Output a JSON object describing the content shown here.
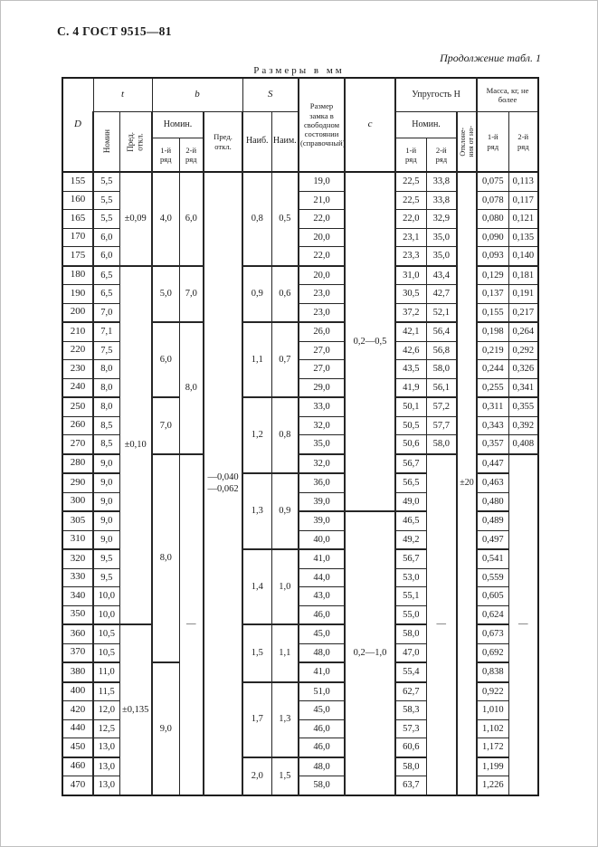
{
  "page": {
    "header_left": "С. 4 ГОСТ 9515—81",
    "continuation": "Продолжение табл. 1",
    "units_caption": "Размеры в мм"
  },
  "table": {
    "h": {
      "d": "D",
      "t": "t",
      "b": "b",
      "s": "S",
      "c": "с",
      "lock": "Размер замка в свободном состоянии (справочный)",
      "elasticity": "Упругость Н",
      "mass": "Масса, кг, не более",
      "nomin": "Номин.",
      "t_nomin": "Номин",
      "pred_otkl": "Пред.\nоткл.",
      "naib": "Наиб.",
      "naim": "Наим.",
      "deviation": "Отклоне-\nния от но-\nмин, %",
      "row1": "1-й\nряд",
      "row2": "2-й\nряд"
    },
    "columns": [
      {
        "key": "d"
      },
      {
        "key": "t"
      },
      {
        "merge": "t_dev"
      },
      {
        "merge": "b1"
      },
      {
        "merge": "b2"
      },
      {
        "merge": "b_dev"
      },
      {
        "merge": "s_max"
      },
      {
        "merge": "s_min"
      },
      {
        "key": "lock"
      },
      {
        "merge": "c"
      },
      {
        "key": "e1"
      },
      {
        "key": "e2",
        "merge": "e2_dash"
      },
      {
        "merge": "dev"
      },
      {
        "key": "m1"
      },
      {
        "key": "m2",
        "merge": "m2_dash"
      }
    ],
    "merges": {
      "t_dev": [
        {
          "at": 0,
          "span": 5,
          "text": "±0,09"
        },
        {
          "at": 5,
          "span": 19,
          "text": "±0,10"
        },
        {
          "at": 24,
          "span": 9,
          "text": "±0,135"
        }
      ],
      "b1": [
        {
          "at": 0,
          "span": 5,
          "text": "4,0"
        },
        {
          "at": 5,
          "span": 3,
          "text": "5,0"
        },
        {
          "at": 8,
          "span": 4,
          "text": "6,0"
        },
        {
          "at": 12,
          "span": 3,
          "text": "7,0"
        },
        {
          "at": 15,
          "span": 11,
          "text": "8,0"
        },
        {
          "at": 26,
          "span": 7,
          "text": "9,0"
        }
      ],
      "b2": [
        {
          "at": 0,
          "span": 5,
          "text": "6,0"
        },
        {
          "at": 5,
          "span": 3,
          "text": "7,0"
        },
        {
          "at": 8,
          "span": 7,
          "text": "8,0"
        },
        {
          "at": 15,
          "span": 18,
          "text": "—"
        }
      ],
      "b_dev": [
        {
          "at": 0,
          "span": 33,
          "text": "—0,040\n—0,062"
        }
      ],
      "s_max": [
        {
          "at": 0,
          "span": 5,
          "text": "0,8"
        },
        {
          "at": 5,
          "span": 3,
          "text": "0,9"
        },
        {
          "at": 8,
          "span": 4,
          "text": "1,1"
        },
        {
          "at": 12,
          "span": 4,
          "text": "1,2"
        },
        {
          "at": 16,
          "span": 4,
          "text": "1,3"
        },
        {
          "at": 20,
          "span": 4,
          "text": "1,4"
        },
        {
          "at": 24,
          "span": 3,
          "text": "1,5"
        },
        {
          "at": 27,
          "span": 4,
          "text": "1,7"
        },
        {
          "at": 31,
          "span": 2,
          "text": "2,0"
        }
      ],
      "s_min": [
        {
          "at": 0,
          "span": 5,
          "text": "0,5"
        },
        {
          "at": 5,
          "span": 3,
          "text": "0,6"
        },
        {
          "at": 8,
          "span": 4,
          "text": "0,7"
        },
        {
          "at": 12,
          "span": 4,
          "text": "0,8"
        },
        {
          "at": 16,
          "span": 4,
          "text": "0,9"
        },
        {
          "at": 20,
          "span": 4,
          "text": "1,0"
        },
        {
          "at": 24,
          "span": 3,
          "text": "1,1"
        },
        {
          "at": 27,
          "span": 4,
          "text": "1,3"
        },
        {
          "at": 31,
          "span": 2,
          "text": "1,5"
        }
      ],
      "c": [
        {
          "at": 0,
          "span": 18,
          "text": "0,2—0,5"
        },
        {
          "at": 18,
          "span": 15,
          "text": "0,2—1,0"
        }
      ],
      "e2_dash": [
        {
          "at": 15,
          "span": 18,
          "text": "—"
        }
      ],
      "dev": [
        {
          "at": 0,
          "span": 33,
          "text": "±20"
        }
      ],
      "m2_dash": [
        {
          "at": 15,
          "span": 18,
          "text": "—"
        }
      ]
    },
    "rows": [
      {
        "d": "155",
        "t": "5,5",
        "lock": "19,0",
        "e1": "22,5",
        "e2": "33,8",
        "m1": "0,075",
        "m2": "0,113"
      },
      {
        "d": "160",
        "t": "5,5",
        "lock": "21,0",
        "e1": "22,5",
        "e2": "33,8",
        "m1": "0,078",
        "m2": "0,117"
      },
      {
        "d": "165",
        "t": "5,5",
        "lock": "22,0",
        "e1": "22,0",
        "e2": "32,9",
        "m1": "0,080",
        "m2": "0,121"
      },
      {
        "d": "170",
        "t": "6,0",
        "lock": "20,0",
        "e1": "23,1",
        "e2": "35,0",
        "m1": "0,090",
        "m2": "0,135"
      },
      {
        "d": "175",
        "t": "6,0",
        "lock": "22,0",
        "e1": "23,3",
        "e2": "35,0",
        "m1": "0,093",
        "m2": "0,140"
      },
      {
        "d": "180",
        "t": "6,5",
        "lock": "20,0",
        "e1": "31,0",
        "e2": "43,4",
        "m1": "0,129",
        "m2": "0,181"
      },
      {
        "d": "190",
        "t": "6,5",
        "lock": "23,0",
        "e1": "30,5",
        "e2": "42,7",
        "m1": "0,137",
        "m2": "0,191"
      },
      {
        "d": "200",
        "t": "7,0",
        "lock": "23,0",
        "e1": "37,2",
        "e2": "52,1",
        "m1": "0,155",
        "m2": "0,217"
      },
      {
        "d": "210",
        "t": "7,1",
        "lock": "26,0",
        "e1": "42,1",
        "e2": "56,4",
        "m1": "0,198",
        "m2": "0,264"
      },
      {
        "d": "220",
        "t": "7,5",
        "lock": "27,0",
        "e1": "42,6",
        "e2": "56,8",
        "m1": "0,219",
        "m2": "0,292"
      },
      {
        "d": "230",
        "t": "8,0",
        "lock": "27,0",
        "e1": "43,5",
        "e2": "58,0",
        "m1": "0,244",
        "m2": "0,326"
      },
      {
        "d": "240",
        "t": "8,0",
        "lock": "29,0",
        "e1": "41,9",
        "e2": "56,1",
        "m1": "0,255",
        "m2": "0,341"
      },
      {
        "d": "250",
        "t": "8,0",
        "lock": "33,0",
        "e1": "50,1",
        "e2": "57,2",
        "m1": "0,311",
        "m2": "0,355"
      },
      {
        "d": "260",
        "t": "8,5",
        "lock": "32,0",
        "e1": "50,5",
        "e2": "57,7",
        "m1": "0,343",
        "m2": "0,392"
      },
      {
        "d": "270",
        "t": "8,5",
        "lock": "35,0",
        "e1": "50,6",
        "e2": "58,0",
        "m1": "0,357",
        "m2": "0,408"
      },
      {
        "d": "280",
        "t": "9,0",
        "lock": "32,0",
        "e1": "56,7",
        "m1": "0,447"
      },
      {
        "d": "290",
        "t": "9,0",
        "lock": "36,0",
        "e1": "56,5",
        "m1": "0,463"
      },
      {
        "d": "300",
        "t": "9,0",
        "lock": "39,0",
        "e1": "49,0",
        "m1": "0,480"
      },
      {
        "d": "305",
        "t": "9,0",
        "lock": "39,0",
        "e1": "46,5",
        "m1": "0,489"
      },
      {
        "d": "310",
        "t": "9,0",
        "lock": "40,0",
        "e1": "49,2",
        "m1": "0,497"
      },
      {
        "d": "320",
        "t": "9,5",
        "lock": "41,0",
        "e1": "56,7",
        "m1": "0,541"
      },
      {
        "d": "330",
        "t": "9,5",
        "lock": "44,0",
        "e1": "53,0",
        "m1": "0,559"
      },
      {
        "d": "340",
        "t": "10,0",
        "lock": "43,0",
        "e1": "55,1",
        "m1": "0,605"
      },
      {
        "d": "350",
        "t": "10,0",
        "lock": "46,0",
        "e1": "55,0",
        "m1": "0,624"
      },
      {
        "d": "360",
        "t": "10,5",
        "lock": "45,0",
        "e1": "58,0",
        "m1": "0,673"
      },
      {
        "d": "370",
        "t": "10,5",
        "lock": "48,0",
        "e1": "47,0",
        "m1": "0,692"
      },
      {
        "d": "380",
        "t": "11,0",
        "lock": "41,0",
        "e1": "55,4",
        "m1": "0,838"
      },
      {
        "d": "400",
        "t": "11,5",
        "lock": "51,0",
        "e1": "62,7",
        "m1": "0,922"
      },
      {
        "d": "420",
        "t": "12,0",
        "lock": "45,0",
        "e1": "58,3",
        "m1": "1,010"
      },
      {
        "d": "440",
        "t": "12,5",
        "lock": "46,0",
        "e1": "57,3",
        "m1": "1,102"
      },
      {
        "d": "450",
        "t": "13,0",
        "lock": "46,0",
        "e1": "60,6",
        "m1": "1,172"
      },
      {
        "d": "460",
        "t": "13,0",
        "lock": "48,0",
        "e1": "58,0",
        "m1": "1,199"
      },
      {
        "d": "470",
        "t": "13,0",
        "lock": "58,0",
        "e1": "63,7",
        "m1": "1,226"
      }
    ]
  }
}
